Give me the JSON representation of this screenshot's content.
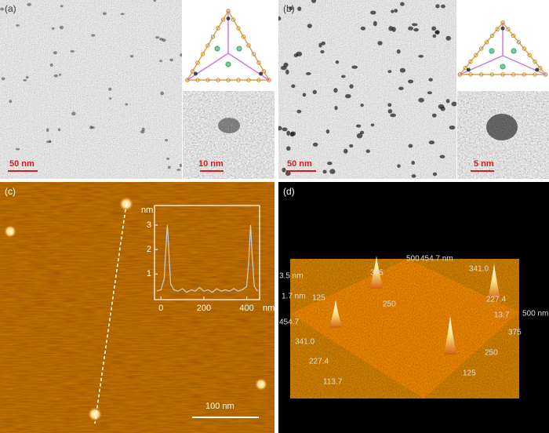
{
  "panels": {
    "a": {
      "label": "(a)",
      "scale_bar": "50 nm",
      "inset_scale_bar": "10 nm"
    },
    "b": {
      "label": "(b)",
      "scale_bar": "50 nm",
      "inset_scale_bar": "5 nm"
    },
    "c": {
      "label": "(c)",
      "scale_bar": "100 nm",
      "inset": {
        "type": "line",
        "y_label": "nm",
        "x_label": "nm",
        "xlim": [
          -30,
          460
        ],
        "ylim": [
          -0.05,
          3.8
        ],
        "xticks": [
          0,
          200,
          400
        ],
        "yticks": [
          1,
          2,
          3
        ],
        "color": "#cfcfcf",
        "x": [
          -20,
          0,
          15,
          25,
          30,
          35,
          45,
          60,
          80,
          100,
          120,
          140,
          160,
          180,
          200,
          220,
          240,
          260,
          280,
          300,
          320,
          340,
          360,
          380,
          400,
          410,
          418,
          425,
          435,
          450
        ],
        "values": [
          0.3,
          0.35,
          0.8,
          2.3,
          3.0,
          2.2,
          0.6,
          0.35,
          0.3,
          0.4,
          0.25,
          0.35,
          0.3,
          0.45,
          0.3,
          0.35,
          0.25,
          0.4,
          0.3,
          0.35,
          0.3,
          0.4,
          0.3,
          0.35,
          0.5,
          1.6,
          3.0,
          1.8,
          0.5,
          0.3
        ]
      }
    },
    "d": {
      "label": "(d)",
      "axis_labels": [
        "3.5 nm",
        "1.7 nm",
        "500",
        "454.7 nm",
        "375",
        "341.0",
        "227.4",
        "13.7",
        "125",
        "250",
        "454.7",
        "341.0",
        "227.4",
        "113.7",
        "500 nm",
        "375",
        "250",
        "125"
      ]
    }
  }
}
